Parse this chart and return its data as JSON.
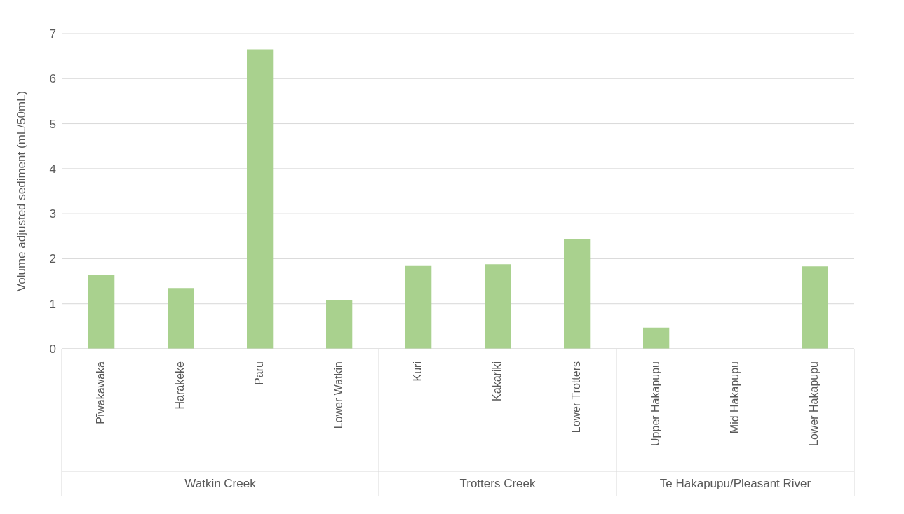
{
  "chart_data": {
    "type": "bar",
    "ylabel": "Volume adjusted sediment (mL/50mL)",
    "categories": [
      "Pīwakawaka",
      "Harakeke",
      "Paru",
      "Lower Watkin",
      "Kuri",
      "Kakariki",
      "Lower Trotters",
      "Upper Hakapupu",
      "Mid Hakapupu",
      "Lower Hakapupu"
    ],
    "values": [
      1.65,
      1.35,
      6.65,
      1.08,
      1.84,
      1.88,
      2.44,
      0.47,
      null,
      1.83
    ],
    "color": "#a9d18e",
    "ylim": [
      0,
      7
    ],
    "yticks": [
      0,
      1,
      2,
      3,
      4,
      5,
      6,
      7
    ],
    "grid": "y",
    "legend": false,
    "annotations": [
      "Watkin Creek",
      "Trotters Creek",
      "Te Hakapupu/Pleasant River"
    ]
  }
}
